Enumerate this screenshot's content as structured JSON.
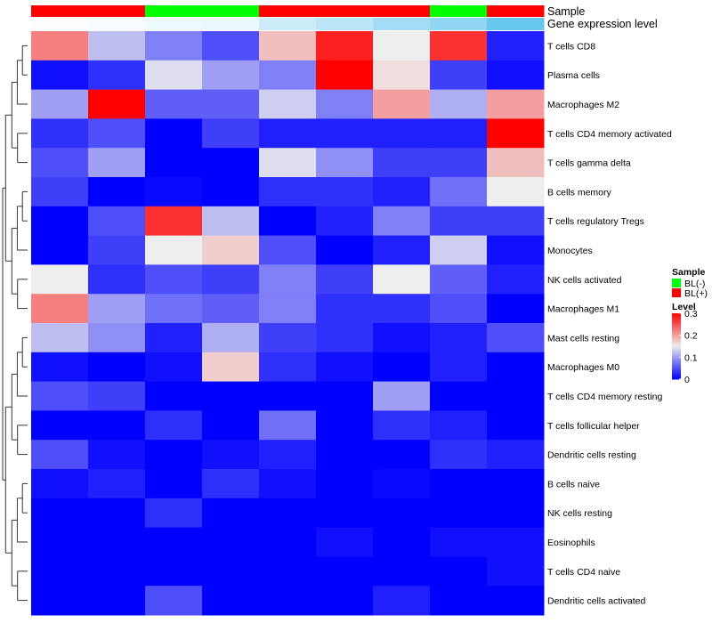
{
  "chart_data": {
    "type": "heatmap",
    "rows": [
      "T cells CD8",
      "Plasma cells",
      "Macrophages M2",
      "T cells CD4 memory activated",
      "T cells gamma delta",
      "B cells memory",
      "T cells regulatory  Tregs",
      "Monocytes",
      "NK cells activated",
      "Macrophages M1",
      "Mast cells resting",
      "Macrophages M0",
      "T cells CD4 memory resting",
      "T cells follicular helper",
      "Dendritic cells resting",
      "B cells naive",
      "NK cells resting",
      "Eosinophils",
      "T cells CD4 naive",
      "Dendritic cells activated"
    ],
    "values": [
      [
        0.22,
        0.12,
        0.08,
        0.05,
        0.18,
        0.28,
        0.15,
        0.27,
        0.02
      ],
      [
        0.01,
        0.03,
        0.14,
        0.1,
        0.08,
        0.32,
        0.16,
        0.04,
        0.01
      ],
      [
        0.1,
        0.3,
        0.06,
        0.06,
        0.13,
        0.08,
        0.2,
        0.11,
        0.2
      ],
      [
        0.03,
        0.05,
        0.0,
        0.04,
        0.02,
        0.02,
        0.02,
        0.02,
        0.32
      ],
      [
        0.05,
        0.1,
        0.0,
        0.0,
        0.14,
        0.09,
        0.04,
        0.04,
        0.18
      ],
      [
        0.04,
        0.0,
        0.005,
        0.0,
        0.03,
        0.03,
        0.02,
        0.07,
        0.15
      ],
      [
        0.0,
        0.05,
        0.27,
        0.12,
        0.0,
        0.02,
        0.08,
        0.04,
        0.04
      ],
      [
        0.0,
        0.04,
        0.15,
        0.17,
        0.05,
        0.0,
        0.02,
        0.13,
        0.01
      ],
      [
        0.15,
        0.03,
        0.05,
        0.04,
        0.08,
        0.04,
        0.15,
        0.06,
        0.02
      ],
      [
        0.22,
        0.1,
        0.07,
        0.06,
        0.08,
        0.03,
        0.03,
        0.05,
        0.0
      ],
      [
        0.12,
        0.09,
        0.02,
        0.11,
        0.04,
        0.03,
        0.01,
        0.02,
        0.05
      ],
      [
        0.01,
        0.0,
        0.01,
        0.17,
        0.03,
        0.01,
        0.0,
        0.02,
        0.0
      ],
      [
        0.05,
        0.04,
        0.0,
        0.0,
        0.0,
        0.0,
        0.1,
        0.0,
        0.0
      ],
      [
        0.0,
        0.0,
        0.03,
        0.0,
        0.07,
        0.0,
        0.03,
        0.02,
        0.0
      ],
      [
        0.05,
        0.01,
        0.0,
        0.01,
        0.02,
        0.0,
        0.0,
        0.03,
        0.02
      ],
      [
        0.01,
        0.02,
        0.0,
        0.03,
        0.01,
        0.0,
        0.005,
        0.0,
        0.0
      ],
      [
        0.0,
        0.0,
        0.03,
        0.0,
        0.0,
        0.0,
        0.0,
        0.0,
        0.0
      ],
      [
        0.0,
        0.0,
        0.0,
        0.0,
        0.0,
        0.01,
        0.0,
        0.01,
        0.01
      ],
      [
        0.0,
        0.0,
        0.0,
        0.0,
        0.0,
        0.0,
        0.0,
        0.0,
        0.01
      ],
      [
        0.0,
        0.0,
        0.05,
        0.0,
        0.0,
        0.0,
        0.02,
        0.0,
        0.0
      ]
    ],
    "column_annotations": {
      "sample_label": "Sample",
      "sample": [
        "BL(+)",
        "BL(+)",
        "BL(-)",
        "BL(-)",
        "BL(+)",
        "BL(+)",
        "BL(+)",
        "BL(-)",
        "BL(+)"
      ],
      "gene_expression_label": "Gene expression level",
      "gene_expression_level": [
        0.02,
        0.05,
        0.1,
        0.12,
        0.3,
        0.4,
        0.55,
        0.65,
        0.9
      ]
    },
    "legend": {
      "placement": "right",
      "sample_title": "Sample",
      "sample_entries": [
        {
          "label": "BL(-)",
          "color": "#00ff00"
        },
        {
          "label": "BL(+)",
          "color": "#ff0000"
        }
      ],
      "level_title": "Level",
      "level_ticks": [
        0,
        0.1,
        0.2,
        0.3
      ],
      "level_tick_labels": [
        "0",
        "0.1",
        "0.2",
        "0.3"
      ]
    },
    "scale": {
      "min": 0,
      "mid": 0.15,
      "max": 0.3,
      "low_color": "#0000ff",
      "mid_color": "#eeeeee",
      "high_color": "#ff0000"
    },
    "annotation_colors": {
      "BL(+)": "#ff0000",
      "BL(-)": "#00ff00",
      "gene_low": "#ffffff",
      "gene_high": "#56c1ec"
    },
    "row_dendrogram": true
  }
}
